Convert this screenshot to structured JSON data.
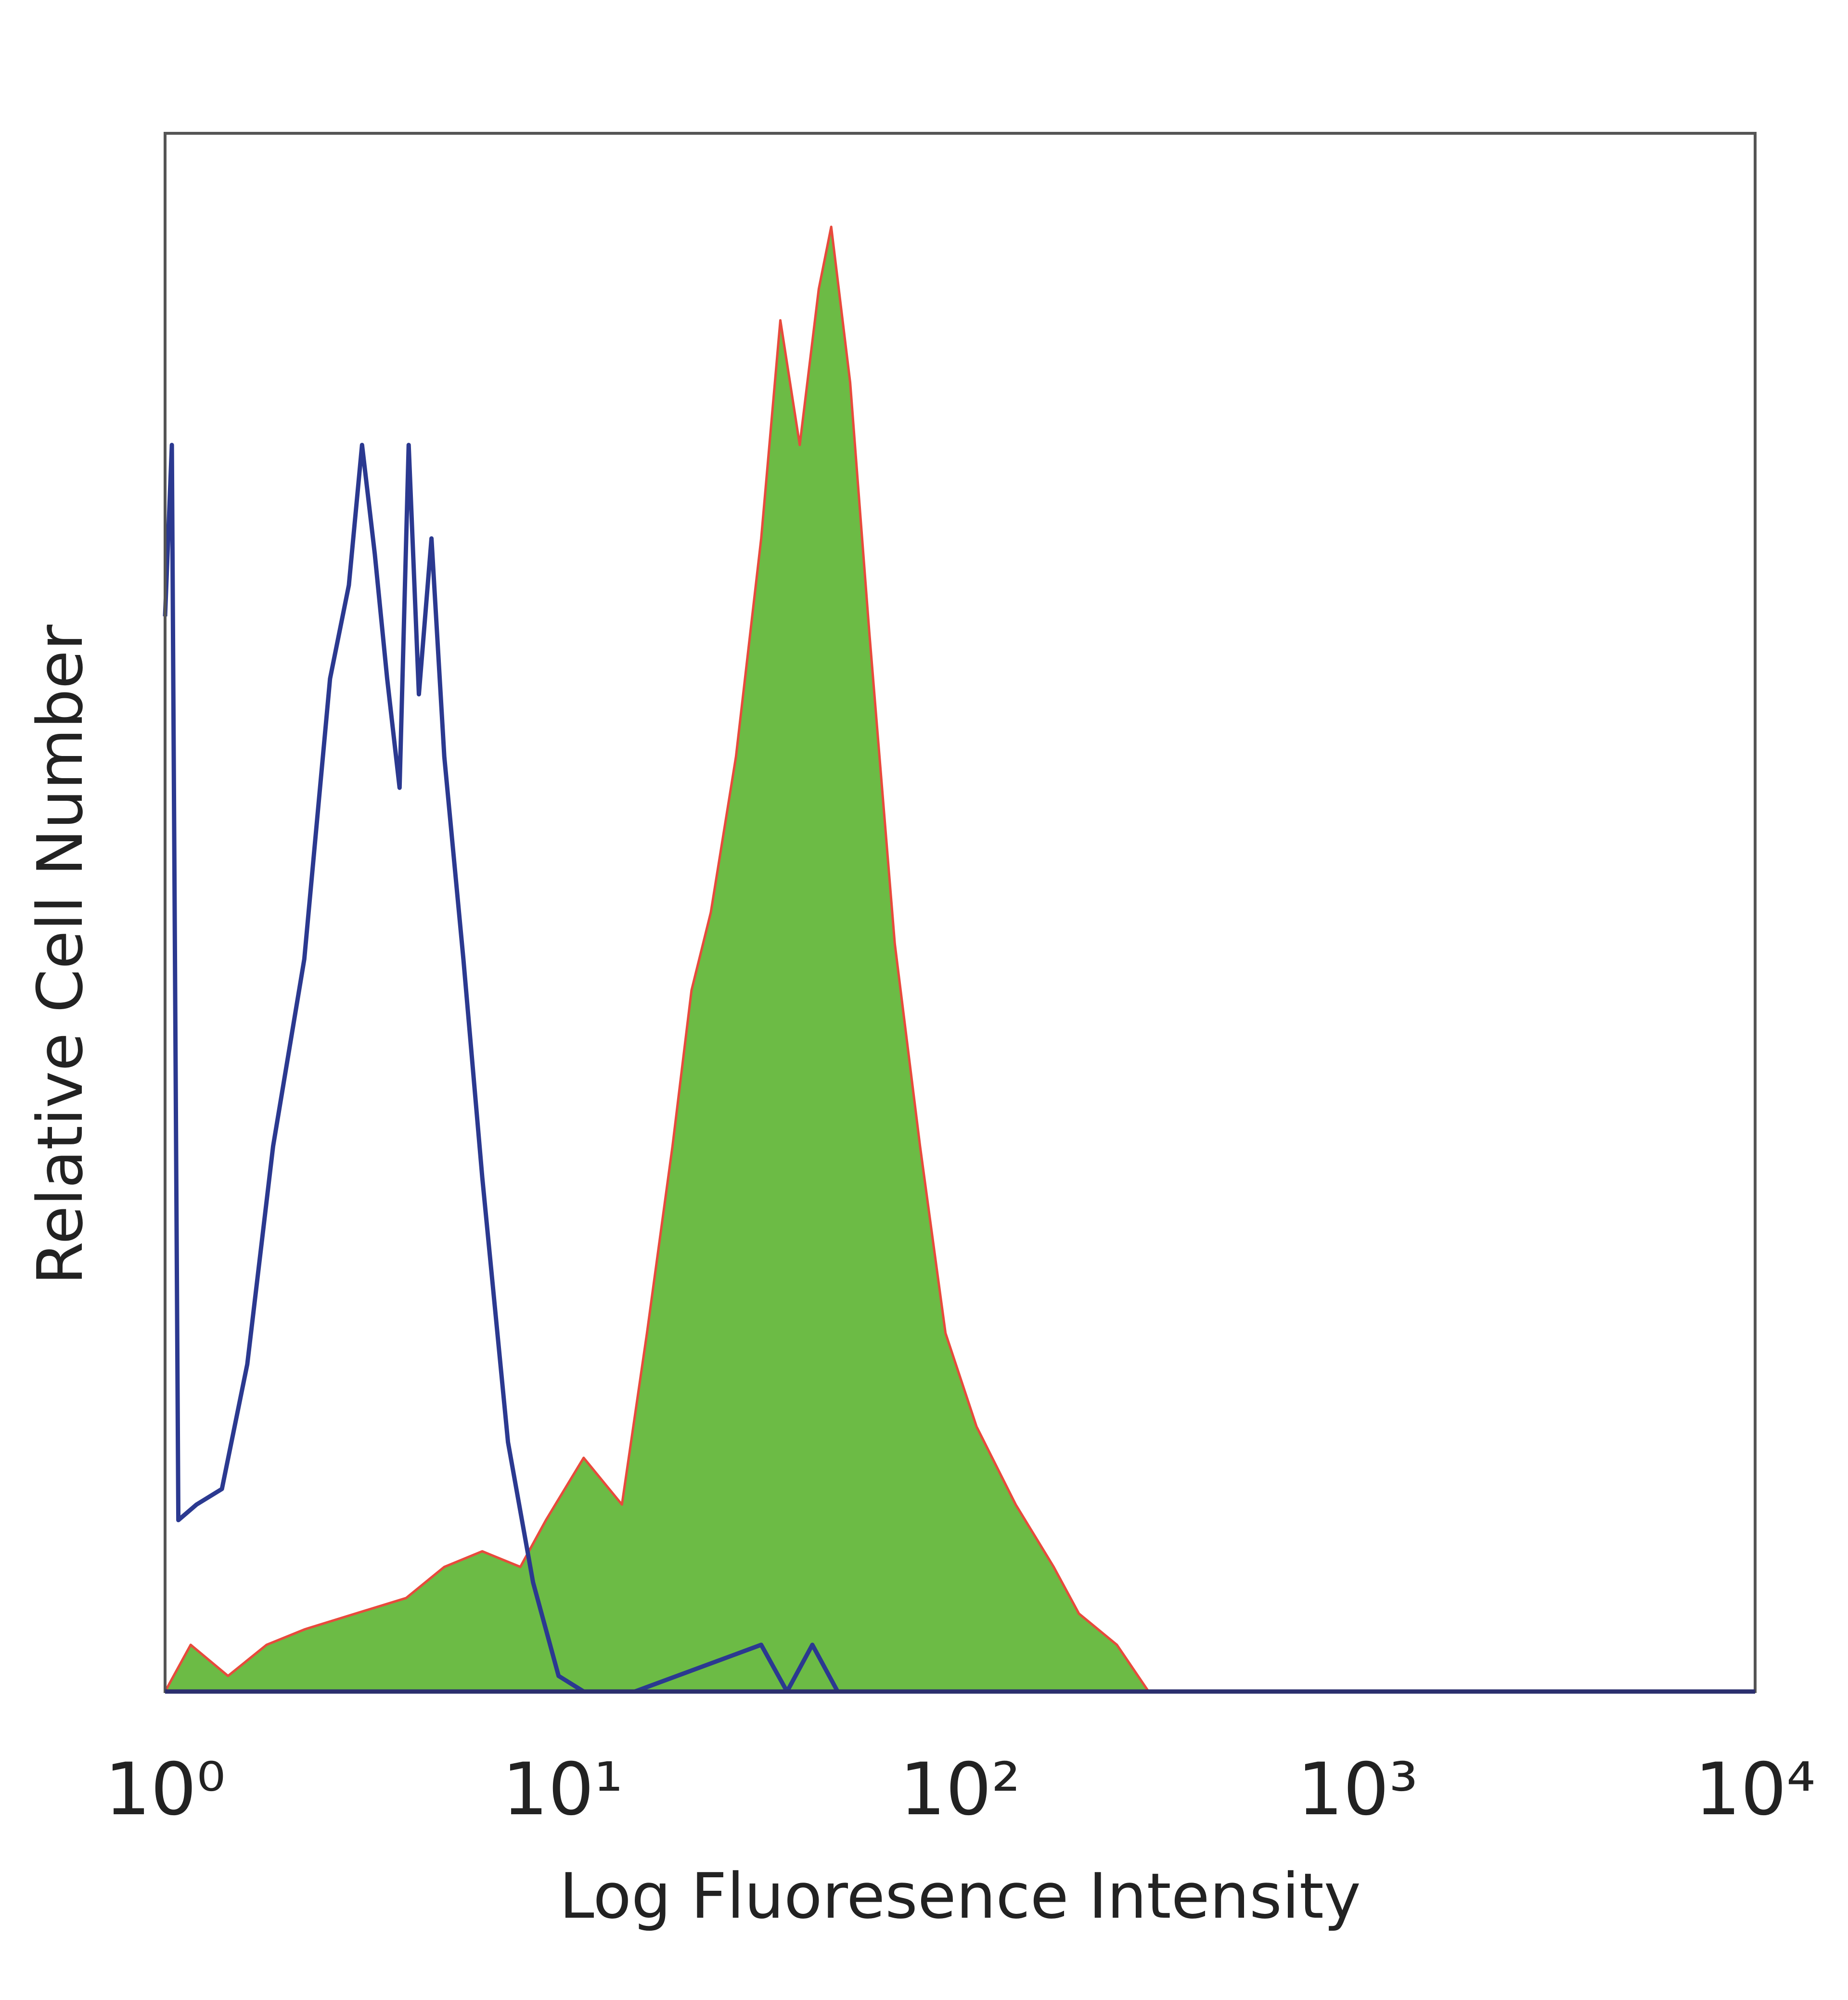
{
  "chart_data": {
    "type": "histogram-overlay",
    "xlabel": "Log Fluoresence Intensity",
    "ylabel": "Relative Cell Number",
    "xscale": "log",
    "xlim": [
      1,
      10000
    ],
    "ylim": [
      0,
      100
    ],
    "xticks": [
      {
        "value": 1,
        "label": "10⁰"
      },
      {
        "value": 10,
        "label": "10¹"
      },
      {
        "value": 100,
        "label": "10²"
      },
      {
        "value": 1000,
        "label": "10³"
      },
      {
        "value": 10000,
        "label": "10⁴"
      }
    ],
    "series": [
      {
        "color": "#2b3990",
        "x": [
          1.0,
          1.04,
          1.08,
          1.2,
          1.39,
          1.61,
          1.87,
          2.24,
          2.6,
          2.9,
          3.13,
          3.37,
          3.62,
          3.89,
          4.1,
          4.35,
          4.68,
          5.04,
          5.63,
          6.28,
          7.29,
          8.43,
          9.77,
          11.3,
          15.2,
          31.6,
          36.7,
          42.5,
          49.2,
          10000
        ],
        "values": [
          69,
          80,
          11,
          12,
          13,
          21,
          35,
          47,
          65,
          71,
          80,
          73,
          65,
          58,
          80,
          64,
          74,
          60,
          47,
          33,
          16,
          7,
          1,
          0,
          0,
          3,
          0,
          3,
          0,
          0
        ]
      },
      {
        "color": "#e84a3c",
        "fill": "#6cbb45",
        "x": [
          1.0,
          1.16,
          1.44,
          1.8,
          2.25,
          3.01,
          4.04,
          5.04,
          6.28,
          7.83,
          9.08,
          11.3,
          14.1,
          16.3,
          18.9,
          21.1,
          23.6,
          27.3,
          31.6,
          35.3,
          39.5,
          44.1,
          47.4,
          52.9,
          59.1,
          68.5,
          79.3,
          91.9,
          110,
          138,
          172,
          199,
          248,
          298,
          10000
        ],
        "values": [
          0,
          3,
          1,
          3,
          4,
          5,
          6,
          8,
          9,
          8,
          11,
          15,
          12,
          23,
          35,
          45,
          50,
          60,
          74,
          88,
          80,
          90,
          94,
          84,
          68,
          48,
          35,
          23,
          17,
          12,
          8,
          5,
          3,
          0,
          0
        ]
      }
    ]
  }
}
